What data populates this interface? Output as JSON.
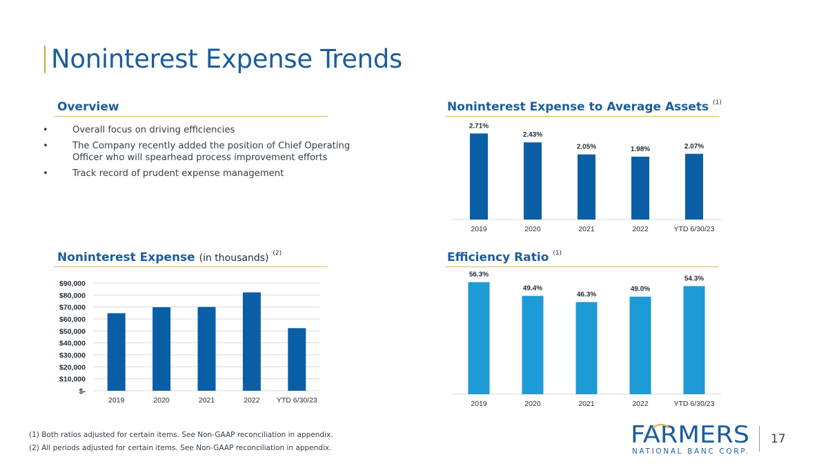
{
  "page": {
    "title": "Noninterest Expense Trends",
    "page_number": "17"
  },
  "overview": {
    "heading": "Overview",
    "bullets": [
      "Overall focus on driving efficiencies",
      "The Company recently added the position of Chief Operating Officer who will spearhead process improvement efforts",
      "Track record of prudent expense management"
    ]
  },
  "headings": {
    "assets": {
      "main": "Noninterest Expense to Average Assets",
      "note": "(1)"
    },
    "expense": {
      "main": "Noninterest Expense",
      "sub": "(in thousands)",
      "note": "(2)"
    },
    "efficiency": {
      "main": "Efficiency Ratio",
      "note": "(1)"
    }
  },
  "footnotes": [
    "(1) Both ratios adjusted for certain items. See Non-GAAP reconciliation in appendix.",
    "(2) All periods adjusted for certain items. See Non-GAAP reconciliation in appendix."
  ],
  "logo": {
    "name": "FARMERS",
    "tagline": "NATIONAL BANC CORP."
  },
  "colors": {
    "dark_blue": "#0a5ea6",
    "light_blue": "#1e9ad6",
    "heading_blue": "#1a5d9c",
    "gold": "#d8b55a"
  },
  "chart_data": [
    {
      "id": "assets",
      "type": "bar",
      "categories": [
        "2019",
        "2020",
        "2021",
        "2022",
        "YTD 6/30/23"
      ],
      "values": [
        2.71,
        2.43,
        2.05,
        1.98,
        2.07
      ],
      "data_labels": [
        "2.71%",
        "2.43%",
        "2.05%",
        "1.98%",
        "2.07%"
      ],
      "ylim": [
        0,
        3.0
      ],
      "grid": false,
      "color": "#0a5ea6"
    },
    {
      "id": "expense",
      "type": "bar",
      "categories": [
        "2019",
        "2020",
        "2021",
        "2022",
        "YTD 6/30/23"
      ],
      "values": [
        64800,
        69800,
        70000,
        82200,
        52300
      ],
      "ylim": [
        0,
        90000
      ],
      "yticks": [
        0,
        10000,
        20000,
        30000,
        40000,
        50000,
        60000,
        70000,
        80000,
        90000
      ],
      "ytick_labels": [
        "$-",
        "$10,000",
        "$20,000",
        "$30,000",
        "$40,000",
        "$50,000",
        "$60,000",
        "$70,000",
        "$80,000",
        "$90,000"
      ],
      "grid": true,
      "color": "#0a5ea6"
    },
    {
      "id": "efficiency",
      "type": "bar",
      "categories": [
        "2019",
        "2020",
        "2021",
        "2022",
        "YTD 6/30/23"
      ],
      "values": [
        56.3,
        49.4,
        46.3,
        49.0,
        54.3
      ],
      "data_labels": [
        "56.3%",
        "49.4%",
        "46.3%",
        "49.0%",
        "54.3%"
      ],
      "ylim": [
        0,
        60
      ],
      "grid": false,
      "color": "#1e9ad6"
    }
  ]
}
